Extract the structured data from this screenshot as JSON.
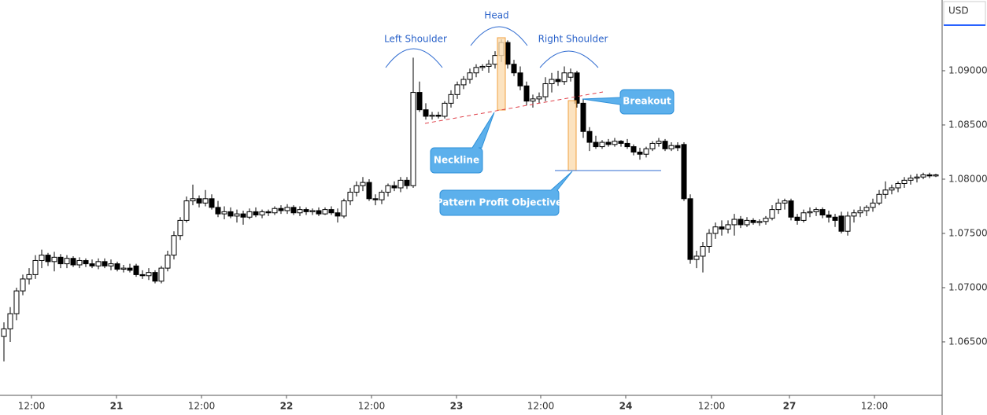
{
  "chart_data": {
    "type": "candlestick",
    "currency": "USD",
    "annotations": {
      "left_shoulder": "Left Shoulder",
      "head": "Head",
      "right_shoulder": "Right Shoulder",
      "neckline": "Neckline",
      "breakout": "Breakout",
      "objective": "Pattern Profit Objective"
    },
    "up_color": "#ffffff",
    "down_color": "#000000",
    "ylim": [
      1.06007,
      1.09652
    ],
    "yticks": [
      {
        "value": 1.065,
        "label": "1.06500"
      },
      {
        "value": 1.07,
        "label": "1.07000"
      },
      {
        "value": 1.075,
        "label": "1.07500"
      },
      {
        "value": 1.08,
        "label": "1.08000"
      },
      {
        "value": 1.085,
        "label": "1.08500"
      },
      {
        "value": 1.09,
        "label": "1.09000"
      }
    ],
    "xlim": [
      -0.625,
      149
    ],
    "xticks": [
      {
        "value": 4.375,
        "label": "12:00"
      },
      {
        "value": 17.875,
        "label": "21"
      },
      {
        "value": 31.375,
        "label": "12:00"
      },
      {
        "value": 44.875,
        "label": "22"
      },
      {
        "value": 58.375,
        "label": "12:00"
      },
      {
        "value": 71.875,
        "label": "23"
      },
      {
        "value": 85.25,
        "label": "12:00"
      },
      {
        "value": 98.75,
        "label": "24"
      },
      {
        "value": 112.375,
        "label": "12:00"
      },
      {
        "value": 124.75,
        "label": "27"
      },
      {
        "value": 138.25,
        "label": "12:00"
      }
    ],
    "candles": [
      [
        1.0655,
        1.0668,
        1.0632,
        1.0662
      ],
      [
        1.0662,
        1.0682,
        1.065,
        1.0676
      ],
      [
        1.0676,
        1.07,
        1.067,
        1.0697
      ],
      [
        1.0697,
        1.0712,
        1.0693,
        1.0708
      ],
      [
        1.0708,
        1.0718,
        1.0703,
        1.0712
      ],
      [
        1.0712,
        1.073,
        1.0708,
        1.0725
      ],
      [
        1.0725,
        1.0735,
        1.0718,
        1.073
      ],
      [
        1.073,
        1.0732,
        1.072,
        1.0724
      ],
      [
        1.0724,
        1.0733,
        1.0715,
        1.0728
      ],
      [
        1.0728,
        1.0731,
        1.0718,
        1.0722
      ],
      [
        1.0722,
        1.073,
        1.0718,
        1.0727
      ],
      [
        1.0727,
        1.0729,
        1.0719,
        1.0721
      ],
      [
        1.0721,
        1.0728,
        1.0718,
        1.0725
      ],
      [
        1.0725,
        1.0727,
        1.0719,
        1.0722
      ],
      [
        1.0722,
        1.0726,
        1.0718,
        1.072
      ],
      [
        1.072,
        1.0727,
        1.0717,
        1.0724
      ],
      [
        1.0724,
        1.0727,
        1.0718,
        1.072
      ],
      [
        1.072,
        1.0726,
        1.0716,
        1.0722
      ],
      [
        1.0722,
        1.0724,
        1.0715,
        1.0717
      ],
      [
        1.0717,
        1.0721,
        1.0714,
        1.0718
      ],
      [
        1.0718,
        1.0722,
        1.0714,
        1.0716
      ],
      [
        1.072,
        1.0722,
        1.071,
        1.0712
      ],
      [
        1.0712,
        1.0716,
        1.0708,
        1.0711
      ],
      [
        1.0711,
        1.0718,
        1.0707,
        1.0714
      ],
      [
        1.0714,
        1.0716,
        1.0704,
        1.0706
      ],
      [
        1.0706,
        1.072,
        1.0704,
        1.0718
      ],
      [
        1.0718,
        1.0734,
        1.0715,
        1.073
      ],
      [
        1.073,
        1.0752,
        1.0726,
        1.0748
      ],
      [
        1.0748,
        1.0765,
        1.0744,
        1.0762
      ],
      [
        1.0762,
        1.0784,
        1.076,
        1.078
      ],
      [
        1.078,
        1.0795,
        1.0776,
        1.0782
      ],
      [
        1.0782,
        1.0785,
        1.0774,
        1.0778
      ],
      [
        1.0778,
        1.079,
        1.0775,
        1.0782
      ],
      [
        1.0782,
        1.0786,
        1.0772,
        1.0774
      ],
      [
        1.0774,
        1.078,
        1.0765,
        1.0768
      ],
      [
        1.0768,
        1.0775,
        1.0763,
        1.077
      ],
      [
        1.077,
        1.0774,
        1.0764,
        1.0766
      ],
      [
        1.0766,
        1.0772,
        1.076,
        1.0768
      ],
      [
        1.0768,
        1.0771,
        1.0758,
        1.0765
      ],
      [
        1.0765,
        1.0773,
        1.0763,
        1.077
      ],
      [
        1.077,
        1.0774,
        1.0765,
        1.0767
      ],
      [
        1.0767,
        1.0772,
        1.0764,
        1.077
      ],
      [
        1.077,
        1.0772,
        1.0766,
        1.0769
      ],
      [
        1.0769,
        1.0775,
        1.0767,
        1.0773
      ],
      [
        1.0773,
        1.0776,
        1.0768,
        1.0771
      ],
      [
        1.0771,
        1.0777,
        1.0768,
        1.0774
      ],
      [
        1.0774,
        1.0776,
        1.0767,
        1.0769
      ],
      [
        1.0769,
        1.0775,
        1.0766,
        1.0772
      ],
      [
        1.0772,
        1.0774,
        1.0767,
        1.077
      ],
      [
        1.077,
        1.0773,
        1.0767,
        1.0771
      ],
      [
        1.0771,
        1.0774,
        1.0766,
        1.0768
      ],
      [
        1.0768,
        1.0774,
        1.0767,
        1.0772
      ],
      [
        1.0772,
        1.0775,
        1.0767,
        1.0769
      ],
      [
        1.0769,
        1.0773,
        1.076,
        1.0766
      ],
      [
        1.0766,
        1.0782,
        1.0764,
        1.078
      ],
      [
        1.078,
        1.0792,
        1.0776,
        1.0788
      ],
      [
        1.0788,
        1.0798,
        1.0784,
        1.0794
      ],
      [
        1.0794,
        1.0802,
        1.0789,
        1.0797
      ],
      [
        1.0797,
        1.08,
        1.078,
        1.0782
      ],
      [
        1.0782,
        1.0786,
        1.0776,
        1.0781
      ],
      [
        1.0781,
        1.079,
        1.0777,
        1.0788
      ],
      [
        1.0788,
        1.0796,
        1.0784,
        1.0794
      ],
      [
        1.0794,
        1.0798,
        1.0789,
        1.0792
      ],
      [
        1.0792,
        1.0802,
        1.0788,
        1.0799
      ],
      [
        1.0799,
        1.0802,
        1.0791,
        1.0794
      ],
      [
        1.0794,
        1.0912,
        1.0792,
        1.088
      ],
      [
        1.088,
        1.089,
        1.0862,
        1.0864
      ],
      [
        1.0864,
        1.087,
        1.0855,
        1.0858
      ],
      [
        1.0858,
        1.0862,
        1.0855,
        1.0859
      ],
      [
        1.0859,
        1.0862,
        1.0856,
        1.0858
      ],
      [
        1.0858,
        1.0872,
        1.0856,
        1.087
      ],
      [
        1.087,
        1.0882,
        1.0866,
        1.0878
      ],
      [
        1.0878,
        1.089,
        1.0874,
        1.0887
      ],
      [
        1.0887,
        1.0895,
        1.0883,
        1.0892
      ],
      [
        1.0892,
        1.0902,
        1.0888,
        1.0898
      ],
      [
        1.0898,
        1.0906,
        1.0894,
        1.0903
      ],
      [
        1.0903,
        1.0906,
        1.09,
        1.0904
      ],
      [
        1.0904,
        1.091,
        1.0898,
        1.0906
      ],
      [
        1.0906,
        1.0918,
        1.0902,
        1.0914
      ],
      [
        1.0914,
        1.0929,
        1.0908,
        1.0926
      ],
      [
        1.0926,
        1.0928,
        1.0902,
        1.0906
      ],
      [
        1.0906,
        1.091,
        1.0895,
        1.0898
      ],
      [
        1.0898,
        1.0904,
        1.0882,
        1.0886
      ],
      [
        1.0886,
        1.089,
        1.0868,
        1.0872
      ],
      [
        1.0872,
        1.0878,
        1.0866,
        1.0874
      ],
      [
        1.0874,
        1.088,
        1.087,
        1.0876
      ],
      [
        1.0876,
        1.0894,
        1.0872,
        1.0888
      ],
      [
        1.0888,
        1.0898,
        1.088,
        1.0892
      ],
      [
        1.0892,
        1.09,
        1.0886,
        1.089
      ],
      [
        1.089,
        1.0904,
        1.0887,
        1.0898
      ],
      [
        1.0894,
        1.0902,
        1.089,
        1.0898
      ],
      [
        1.0898,
        1.09,
        1.0866,
        1.087
      ],
      [
        1.087,
        1.0874,
        1.0838,
        1.0844
      ],
      [
        1.0844,
        1.0848,
        1.0826,
        1.0834
      ],
      [
        1.0834,
        1.084,
        1.0828,
        1.083
      ],
      [
        1.083,
        1.0836,
        1.0828,
        1.0834
      ],
      [
        1.0834,
        1.0837,
        1.083,
        1.0832
      ],
      [
        1.0832,
        1.0838,
        1.083,
        1.0835
      ],
      [
        1.0835,
        1.0836,
        1.083,
        1.0833
      ],
      [
        1.0833,
        1.0837,
        1.0828,
        1.083
      ],
      [
        1.083,
        1.0832,
        1.0822,
        1.0825
      ],
      [
        1.0825,
        1.0829,
        1.0818,
        1.0823
      ],
      [
        1.0823,
        1.083,
        1.082,
        1.0828
      ],
      [
        1.0828,
        1.0835,
        1.0826,
        1.0833
      ],
      [
        1.0833,
        1.0838,
        1.083,
        1.0835
      ],
      [
        1.0835,
        1.0837,
        1.0826,
        1.0828
      ],
      [
        1.0828,
        1.0834,
        1.0826,
        1.0831
      ],
      [
        1.0831,
        1.0834,
        1.0826,
        1.0829
      ],
      [
        1.0832,
        1.0834,
        1.078,
        1.0782
      ],
      [
        1.0782,
        1.0786,
        1.0722,
        1.0726
      ],
      [
        1.0726,
        1.0734,
        1.0718,
        1.0729
      ],
      [
        1.0729,
        1.0742,
        1.0714,
        1.0738
      ],
      [
        1.0738,
        1.0754,
        1.0732,
        1.075
      ],
      [
        1.075,
        1.076,
        1.0745,
        1.0756
      ],
      [
        1.0756,
        1.0762,
        1.0748,
        1.0754
      ],
      [
        1.0754,
        1.0762,
        1.075,
        1.0758
      ],
      [
        1.0758,
        1.0768,
        1.0748,
        1.0763
      ],
      [
        1.0763,
        1.0766,
        1.0755,
        1.0758
      ],
      [
        1.0758,
        1.0765,
        1.0756,
        1.0762
      ],
      [
        1.0762,
        1.0764,
        1.0758,
        1.076
      ],
      [
        1.076,
        1.0763,
        1.0757,
        1.0761
      ],
      [
        1.0761,
        1.0766,
        1.0758,
        1.0764
      ],
      [
        1.0764,
        1.0776,
        1.0762,
        1.0772
      ],
      [
        1.0772,
        1.0782,
        1.0768,
        1.0778
      ],
      [
        1.0778,
        1.0782,
        1.0772,
        1.078
      ],
      [
        1.078,
        1.0782,
        1.0762,
        1.0765
      ],
      [
        1.0765,
        1.0768,
        1.0758,
        1.0762
      ],
      [
        1.0762,
        1.0772,
        1.076,
        1.0769
      ],
      [
        1.0769,
        1.0774,
        1.0765,
        1.077
      ],
      [
        1.077,
        1.0774,
        1.0766,
        1.0772
      ],
      [
        1.0772,
        1.0774,
        1.0764,
        1.0767
      ],
      [
        1.0767,
        1.0771,
        1.076,
        1.0765
      ],
      [
        1.0765,
        1.0768,
        1.0756,
        1.0762
      ],
      [
        1.0766,
        1.077,
        1.075,
        1.0752
      ],
      [
        1.0752,
        1.077,
        1.0748,
        1.0766
      ],
      [
        1.0766,
        1.0772,
        1.076,
        1.0769
      ],
      [
        1.0769,
        1.0775,
        1.0765,
        1.0771
      ],
      [
        1.0771,
        1.0776,
        1.0766,
        1.0774
      ],
      [
        1.0774,
        1.0782,
        1.077,
        1.0778
      ],
      [
        1.0778,
        1.079,
        1.0776,
        1.0786
      ],
      [
        1.0786,
        1.0798,
        1.0782,
        1.079
      ],
      [
        1.079,
        1.0795,
        1.0786,
        1.0792
      ],
      [
        1.0792,
        1.0798,
        1.0788,
        1.0796
      ],
      [
        1.0796,
        1.0802,
        1.0792,
        1.0799
      ],
      [
        1.0799,
        1.0804,
        1.0795,
        1.0801
      ],
      [
        1.0801,
        1.0805,
        1.0797,
        1.0802
      ],
      [
        1.0802,
        1.0806,
        1.08,
        1.0804
      ],
      [
        1.0804,
        1.0806,
        1.0801,
        1.0803
      ],
      [
        1.0803,
        1.0805,
        1.0802,
        1.0804
      ]
    ]
  }
}
